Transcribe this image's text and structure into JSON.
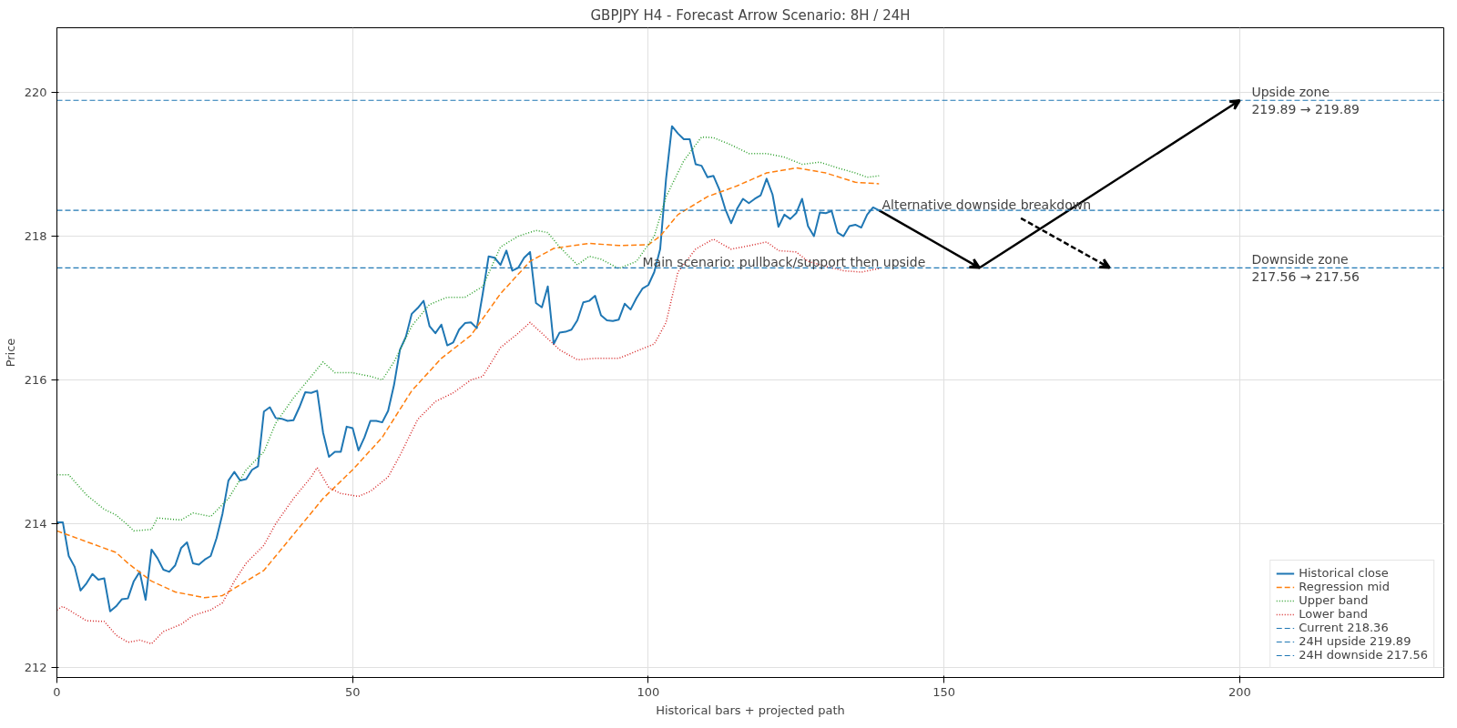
{
  "chart_data": {
    "type": "line",
    "title": "GBPJPY H4 - Forecast Arrow Scenario: 8H / 24H",
    "xlabel": "Historical bars + projected path",
    "ylabel": "Price",
    "xlim": [
      0,
      234.5
    ],
    "ylim": [
      211.86,
      220.9
    ],
    "xticks": [
      0,
      50,
      100,
      150,
      200
    ],
    "yticks": [
      212,
      214,
      216,
      218,
      220
    ],
    "grid": true,
    "legend": "bottom right",
    "series": [
      {
        "name": "Historical close",
        "color": "#1f77b4",
        "line_style": "solid",
        "x": [
          0,
          1,
          2,
          3,
          4,
          5,
          6,
          7,
          8,
          9,
          10,
          11,
          12,
          13,
          14,
          15,
          16,
          17,
          18,
          19,
          20,
          21,
          22,
          23,
          24,
          25,
          26,
          27,
          28,
          29,
          30,
          31,
          32,
          33,
          34,
          35,
          36,
          37,
          38,
          39,
          40,
          41,
          42,
          43,
          44,
          45,
          46,
          47,
          48,
          49,
          50,
          51,
          52,
          53,
          54,
          55,
          56,
          57,
          58,
          59,
          60,
          61,
          62,
          63,
          64,
          65,
          66,
          67,
          68,
          69,
          70,
          71,
          72,
          73,
          74,
          75,
          76,
          77,
          78,
          79,
          80,
          81,
          82,
          83,
          84,
          85,
          86,
          87,
          88,
          89,
          90,
          91,
          92,
          93,
          94,
          95,
          96,
          97,
          98,
          99,
          100,
          101,
          102,
          103,
          104,
          105,
          106,
          107,
          108,
          109,
          110,
          111,
          112,
          113,
          114,
          115,
          116,
          117,
          118,
          119,
          120,
          121,
          122,
          123,
          124,
          125,
          126,
          127,
          128,
          129,
          130,
          131,
          132,
          133,
          134,
          135,
          136,
          137,
          138,
          139
        ],
        "values": [
          214.02,
          214.02,
          213.55,
          213.4,
          213.07,
          213.17,
          213.3,
          213.22,
          213.24,
          212.78,
          212.85,
          212.95,
          212.96,
          213.2,
          213.33,
          212.94,
          213.64,
          213.52,
          213.36,
          213.33,
          213.42,
          213.66,
          213.74,
          213.45,
          213.43,
          213.5,
          213.55,
          213.8,
          214.14,
          214.6,
          214.72,
          214.6,
          214.62,
          214.75,
          214.8,
          215.56,
          215.62,
          215.47,
          215.46,
          215.43,
          215.44,
          215.62,
          215.83,
          215.82,
          215.85,
          215.27,
          214.93,
          215.0,
          215.0,
          215.35,
          215.33,
          215.02,
          215.2,
          215.43,
          215.43,
          215.41,
          215.57,
          215.93,
          216.42,
          216.6,
          216.92,
          217.0,
          217.1,
          216.75,
          216.65,
          216.77,
          216.48,
          216.52,
          216.7,
          216.79,
          216.8,
          216.72,
          217.2,
          217.72,
          217.7,
          217.6,
          217.8,
          217.52,
          217.56,
          217.7,
          217.78,
          217.07,
          217.01,
          217.3,
          216.5,
          216.66,
          216.67,
          216.7,
          216.83,
          217.08,
          217.1,
          217.17,
          216.9,
          216.83,
          216.82,
          216.84,
          217.06,
          216.98,
          217.14,
          217.27,
          217.32,
          217.5,
          217.82,
          218.8,
          219.53,
          219.43,
          219.35,
          219.35,
          219.0,
          218.98,
          218.82,
          218.84,
          218.65,
          218.38,
          218.18,
          218.38,
          218.52,
          218.46,
          218.52,
          218.57,
          218.8,
          218.58,
          218.13,
          218.3,
          218.24,
          218.32,
          218.52,
          218.14,
          218.0,
          218.33,
          218.32,
          218.35,
          218.05,
          218.0,
          218.14,
          218.16,
          218.12,
          218.3,
          218.4,
          218.36
        ]
      },
      {
        "name": "Regression mid",
        "color": "#ff7f0e",
        "line_style": "dashed",
        "x": [
          0,
          5,
          10,
          12,
          16,
          20,
          25,
          28,
          32,
          35,
          40,
          45,
          50,
          55,
          60,
          65,
          70,
          75,
          80,
          84,
          90,
          95,
          100,
          102,
          105,
          110,
          115,
          120,
          125,
          130,
          135,
          139
        ],
        "values": [
          213.9,
          213.75,
          213.6,
          213.45,
          213.2,
          213.05,
          212.97,
          213.0,
          213.2,
          213.35,
          213.85,
          214.35,
          214.75,
          215.2,
          215.85,
          216.3,
          216.62,
          217.2,
          217.65,
          217.83,
          217.9,
          217.87,
          217.88,
          218.0,
          218.3,
          218.55,
          218.7,
          218.88,
          218.95,
          218.88,
          218.75,
          218.73
        ]
      },
      {
        "name": "Upper band",
        "color": "#2ca02c",
        "line_style": "dotted",
        "x": [
          0,
          2,
          5,
          8,
          10,
          12,
          13,
          16,
          17,
          21,
          23,
          26,
          29,
          32,
          35,
          37,
          40,
          43,
          45,
          47,
          50,
          53,
          55,
          57,
          60,
          63,
          66,
          69,
          72,
          75,
          78,
          81,
          83,
          85,
          88,
          90,
          92,
          95,
          98,
          101,
          103,
          106,
          109,
          111,
          114,
          117,
          120,
          123,
          126,
          129,
          132,
          135,
          137,
          139
        ],
        "values": [
          214.68,
          214.68,
          214.4,
          214.2,
          214.12,
          213.98,
          213.9,
          213.92,
          214.08,
          214.05,
          214.15,
          214.1,
          214.35,
          214.75,
          215.0,
          215.4,
          215.75,
          216.05,
          216.25,
          216.1,
          216.1,
          216.05,
          216.0,
          216.25,
          216.75,
          217.05,
          217.15,
          217.15,
          217.3,
          217.85,
          218.0,
          218.08,
          218.05,
          217.85,
          217.6,
          217.72,
          217.68,
          217.55,
          217.65,
          218.0,
          218.55,
          219.05,
          219.38,
          219.37,
          219.27,
          219.15,
          219.15,
          219.1,
          219.0,
          219.03,
          218.95,
          218.88,
          218.82,
          218.84
        ]
      },
      {
        "name": "Lower band",
        "color": "#d62728",
        "line_style": "dotted",
        "x": [
          0,
          1,
          3,
          5,
          8,
          10,
          12,
          14,
          16,
          18,
          21,
          23,
          26,
          28,
          30,
          32,
          35,
          37,
          40,
          43,
          44,
          46,
          48,
          51,
          53,
          56,
          58,
          61,
          64,
          67,
          70,
          72,
          75,
          78,
          80,
          82,
          85,
          88,
          91,
          95,
          98,
          101,
          103,
          105,
          108,
          111,
          114,
          116,
          120,
          122,
          125,
          127,
          130,
          133,
          136,
          139
        ],
        "values": [
          212.8,
          212.85,
          212.75,
          212.65,
          212.64,
          212.45,
          212.35,
          212.38,
          212.33,
          212.5,
          212.6,
          212.72,
          212.8,
          212.9,
          213.2,
          213.45,
          213.7,
          214.0,
          214.35,
          214.65,
          214.78,
          214.5,
          214.42,
          214.38,
          214.45,
          214.65,
          214.95,
          215.45,
          215.7,
          215.82,
          216.0,
          216.05,
          216.45,
          216.65,
          216.8,
          216.65,
          216.42,
          216.28,
          216.3,
          216.3,
          216.4,
          216.5,
          216.8,
          217.5,
          217.82,
          217.96,
          217.82,
          217.85,
          217.92,
          217.8,
          217.78,
          217.65,
          217.58,
          217.52,
          217.5,
          217.55
        ]
      },
      {
        "type": "line",
        "color": "#000000",
        "line_style": "solid",
        "x": [
          139,
          156,
          200
        ],
        "values": [
          218.36,
          217.56,
          219.89
        ]
      },
      {
        "type": "line",
        "color": "#000000",
        "line_style": "dashed",
        "x": [
          163,
          178
        ],
        "values": [
          218.25,
          217.56
        ]
      }
    ],
    "ref_lines": [
      {
        "axis": "y",
        "value": 218.36,
        "label": "Current 218.36",
        "color": "#1f77b4",
        "line_style": "dashed"
      },
      {
        "axis": "y",
        "value": 219.89,
        "label": "24H upside 219.89",
        "color": "#1f77b4",
        "line_style": "dashed"
      },
      {
        "axis": "y",
        "value": 217.56,
        "label": "24H downside 217.56",
        "color": "#1f77b4",
        "line_style": "dashed"
      }
    ],
    "annotations": [
      {
        "text": "Upside zone\n219.89 → 219.89",
        "x": 202,
        "y": 219.89
      },
      {
        "text": "Downside zone\n217.56 → 217.56",
        "x": 202,
        "y": 217.56
      },
      {
        "text": "Main scenario: pullback/support then upside",
        "x": 99,
        "y": 217.56
      },
      {
        "text": "Alternative downside breakdown",
        "x": 139.5,
        "y": 218.36
      }
    ]
  }
}
